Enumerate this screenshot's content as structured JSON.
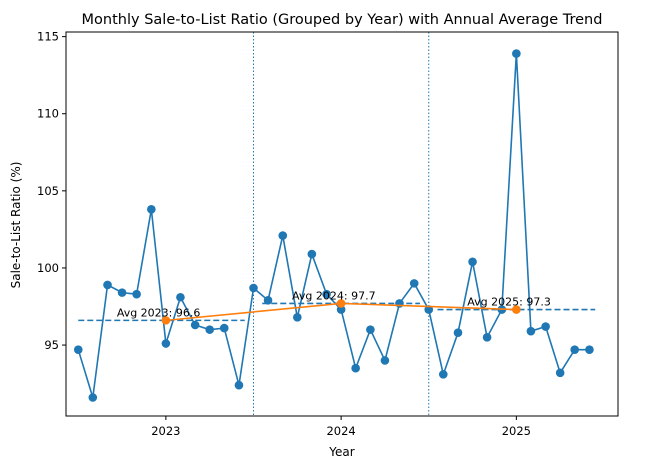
{
  "chart_data": {
    "type": "line",
    "title": "Monthly Sale-to-List Ratio (Grouped by Year) with Annual Average Trend",
    "xlabel": "Year",
    "ylabel": "Sale-to-List Ratio (%)",
    "xlim": [
      2022.43,
      2025.58
    ],
    "ylim": [
      90.4,
      115.3
    ],
    "grid": false,
    "x_ticks": [
      {
        "value": 2023,
        "label": "2023"
      },
      {
        "value": 2024,
        "label": "2024"
      },
      {
        "value": 2025,
        "label": "2025"
      }
    ],
    "y_ticks": [
      {
        "value": 95,
        "label": "95"
      },
      {
        "value": 100,
        "label": "100"
      },
      {
        "value": 105,
        "label": "105"
      },
      {
        "value": 110,
        "label": "110"
      },
      {
        "value": 115,
        "label": "115"
      }
    ],
    "colors": {
      "monthly": "#1f77b4",
      "annual": "#ff7f0e",
      "divider": "#1f77b4",
      "avg_line": "#1f77b4"
    },
    "monthly_series": {
      "x": [
        2022.5,
        2022.583,
        2022.667,
        2022.75,
        2022.833,
        2022.917,
        2023.0,
        2023.083,
        2023.167,
        2023.25,
        2023.333,
        2023.417,
        2023.5,
        2023.583,
        2023.667,
        2023.75,
        2023.833,
        2023.917,
        2024.0,
        2024.083,
        2024.167,
        2024.25,
        2024.333,
        2024.417,
        2024.5,
        2024.583,
        2024.667,
        2024.75,
        2024.833,
        2024.917,
        2025.0,
        2025.083,
        2025.167,
        2025.25,
        2025.333,
        2025.417
      ],
      "y": [
        94.7,
        91.6,
        98.9,
        98.4,
        98.3,
        103.8,
        95.1,
        98.1,
        96.3,
        96.0,
        96.1,
        92.4,
        98.7,
        97.9,
        102.1,
        96.8,
        100.9,
        98.3,
        97.3,
        93.5,
        96.0,
        94.0,
        97.7,
        99.0,
        97.3,
        93.1,
        95.8,
        100.4,
        95.5,
        97.3,
        113.9,
        95.9,
        96.2,
        93.2,
        94.7,
        94.7
      ]
    },
    "annual_series": {
      "x": [
        2023,
        2024,
        2025
      ],
      "y": [
        96.6,
        97.7,
        97.3
      ]
    },
    "year_averages": [
      {
        "value": 96.6,
        "x_range": [
          2022.5,
          2023.45
        ],
        "label_x": 2022.72,
        "label": "Avg 2023: 96.6"
      },
      {
        "value": 97.7,
        "x_range": [
          2023.55,
          2024.45
        ],
        "label_x": 2023.72,
        "label": "Avg 2024: 97.7"
      },
      {
        "value": 97.3,
        "x_range": [
          2024.55,
          2025.45
        ],
        "label_x": 2024.72,
        "label": "Avg 2025: 97.3"
      }
    ],
    "year_dividers": [
      2023.5,
      2024.5
    ]
  }
}
